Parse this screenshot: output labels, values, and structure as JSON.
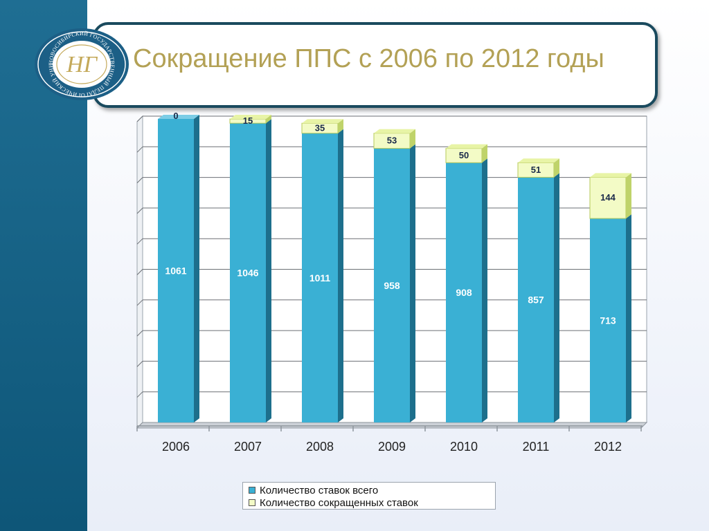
{
  "title": "Сокращение ППС с 2006 по 2012 годы",
  "logo": {
    "text": "НОВОСИБИРСКИЙ ГОСУДАРСТВЕННЫЙ ПЕДАГОГИЧЕСКИЙ УНИВЕРСИТЕТ",
    "monogram": "НГ"
  },
  "colors": {
    "total": "#3ab0d4",
    "reduced": "#f3fbc6",
    "title": "#b3a155",
    "sidebar": "#14638a"
  },
  "chart_data": {
    "type": "bar",
    "stacked": true,
    "categories": [
      "2006",
      "2007",
      "2008",
      "2009",
      "2010",
      "2011",
      "2012"
    ],
    "series": [
      {
        "name": "Количество ставок всего",
        "values": [
          1061,
          1046,
          1011,
          958,
          908,
          857,
          713
        ]
      },
      {
        "name": "Количество сокращенных ставок",
        "values": [
          0,
          15,
          35,
          53,
          50,
          51,
          144
        ]
      }
    ],
    "title": "",
    "xlabel": "",
    "ylabel": "",
    "ylim": [
      0,
      1061
    ],
    "grid": true,
    "legend_position": "bottom"
  }
}
